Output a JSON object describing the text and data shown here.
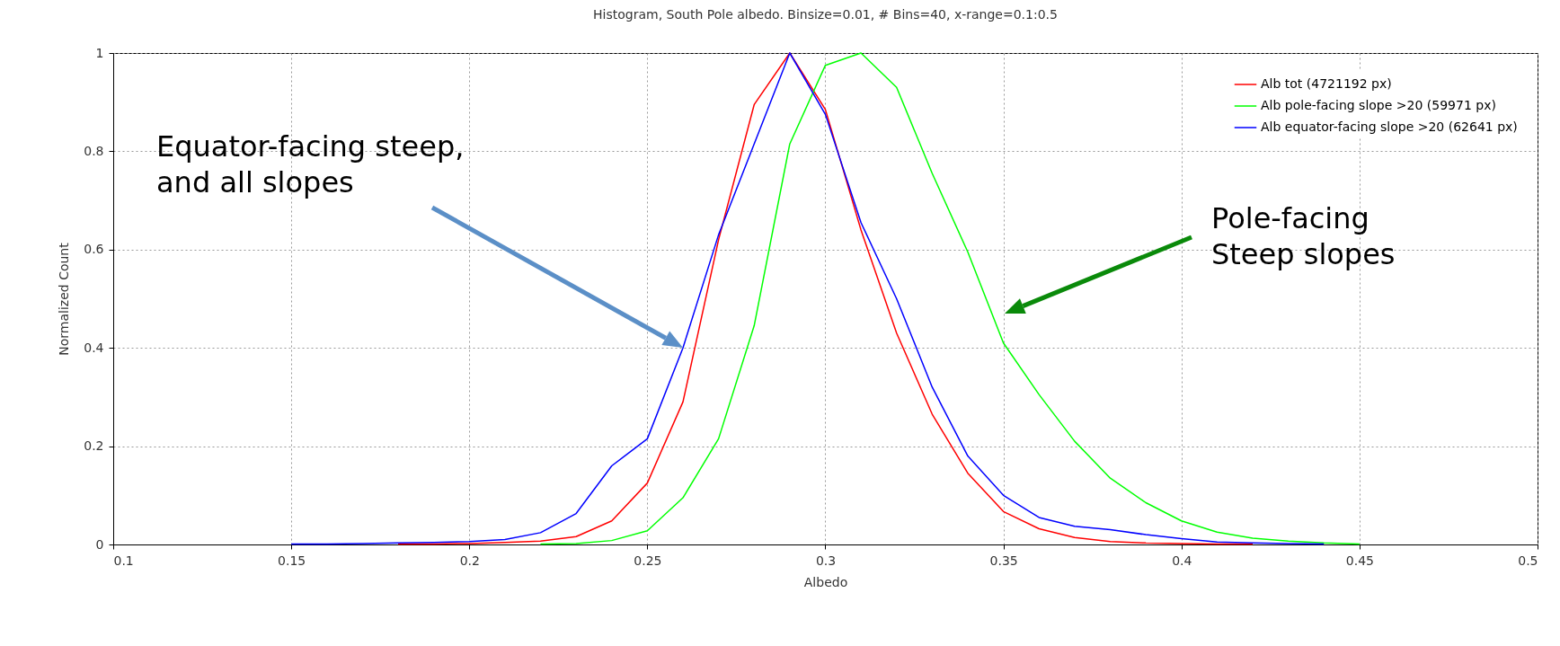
{
  "chart_data": {
    "type": "line",
    "title": "Histogram, South Pole albedo. Binsize=0.01, # Bins=40, x-range=0.1:0.5",
    "xlabel": "Albedo",
    "ylabel": "Normalized Count",
    "x": [
      0.15,
      0.16,
      0.17,
      0.18,
      0.19,
      0.2,
      0.21,
      0.22,
      0.23,
      0.24,
      0.25,
      0.26,
      0.27,
      0.28,
      0.29,
      0.3,
      0.31,
      0.32,
      0.33,
      0.34,
      0.35,
      0.36,
      0.37,
      0.38,
      0.39,
      0.4,
      0.41,
      0.42,
      0.43,
      0.44,
      0.45
    ],
    "series": [
      {
        "name": "Alb tot (4721192 px)",
        "color": "#ff0000",
        "values": [
          null,
          null,
          null,
          0.001,
          0.001,
          0.002,
          0.004,
          0.007,
          0.016,
          0.048,
          0.125,
          0.29,
          0.62,
          0.895,
          1.0,
          0.885,
          0.64,
          0.43,
          0.265,
          0.145,
          0.067,
          0.032,
          0.014,
          0.006,
          0.003,
          0.002,
          0.001,
          0.001,
          null,
          null,
          null
        ]
      },
      {
        "name": "Alb pole-facing slope >20 (59971 px)",
        "color": "#00ff00",
        "values": [
          null,
          null,
          null,
          null,
          null,
          null,
          null,
          0.001,
          0.002,
          0.008,
          0.028,
          0.095,
          0.215,
          0.445,
          0.815,
          0.975,
          1.0,
          0.93,
          0.755,
          0.595,
          0.41,
          0.305,
          0.21,
          0.135,
          0.085,
          0.048,
          0.025,
          0.013,
          0.007,
          0.003,
          0.001
        ]
      },
      {
        "name": "Alb equator-facing slope >20 (62641 px)",
        "color": "#0000ff",
        "values": [
          0.001,
          0.001,
          0.002,
          0.003,
          0.004,
          0.006,
          0.01,
          0.024,
          0.063,
          0.16,
          0.215,
          0.4,
          0.63,
          0.815,
          1.0,
          0.875,
          0.655,
          0.5,
          0.32,
          0.18,
          0.1,
          0.055,
          0.037,
          0.03,
          0.02,
          0.012,
          0.005,
          0.003,
          0.002,
          0.001,
          null
        ]
      }
    ],
    "xlim": [
      0.1,
      0.5
    ],
    "xticks": [
      0.1,
      0.15,
      0.2,
      0.25,
      0.3,
      0.35,
      0.4,
      0.45,
      0.5
    ],
    "ylim": [
      0,
      1
    ],
    "yticks": [
      0,
      0.2,
      0.4,
      0.6,
      0.8,
      1
    ],
    "grid": true,
    "legend": "top right",
    "marker": "none",
    "line_style": "solid",
    "annotations": [
      "Equator-facing steep,\nand all slopes",
      "Pole-facing\nSteep slopes"
    ]
  }
}
